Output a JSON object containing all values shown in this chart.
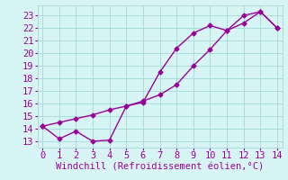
{
  "line1_x": [
    0,
    1,
    2,
    3,
    4,
    5,
    6,
    7,
    8,
    9,
    10,
    11,
    12,
    13,
    14
  ],
  "line1_y": [
    14.2,
    13.2,
    13.8,
    13.0,
    13.1,
    15.8,
    16.1,
    18.5,
    20.4,
    21.6,
    22.2,
    21.8,
    23.0,
    23.3,
    22.0
  ],
  "line2_x": [
    0,
    1,
    2,
    3,
    4,
    5,
    6,
    7,
    8,
    9,
    10,
    11,
    12,
    13,
    14
  ],
  "line2_y": [
    14.2,
    14.5,
    14.8,
    15.1,
    15.5,
    15.8,
    16.2,
    16.7,
    17.5,
    19.0,
    20.3,
    21.8,
    22.4,
    23.3,
    22.0
  ],
  "line_color": "#990099",
  "bg_color": "#d8f5f5",
  "grid_color": "#aadddd",
  "xlabel": "Windchill (Refroidissement éolien,°C)",
  "xlabel_color": "#990099",
  "tick_color": "#990099",
  "ylim": [
    12.5,
    23.8
  ],
  "xlim": [
    -0.3,
    14.3
  ],
  "yticks": [
    13,
    14,
    15,
    16,
    17,
    18,
    19,
    20,
    21,
    22,
    23
  ],
  "xticks": [
    0,
    1,
    2,
    3,
    4,
    5,
    6,
    7,
    8,
    9,
    10,
    11,
    12,
    13,
    14
  ],
  "marker": "D",
  "markersize": 2.5,
  "linewidth": 1.0,
  "font_size": 7.5
}
